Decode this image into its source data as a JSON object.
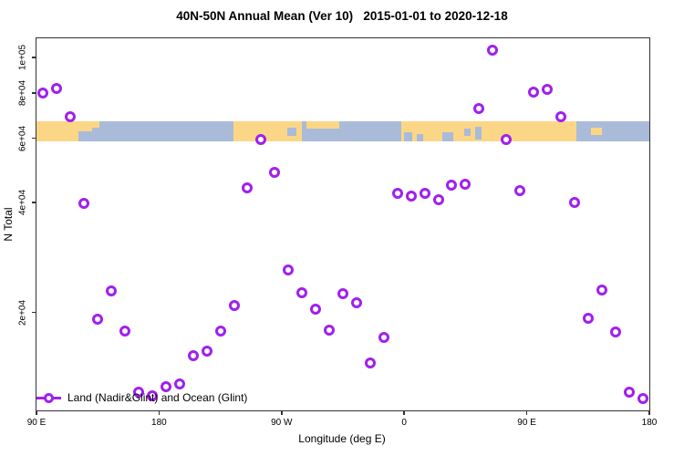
{
  "chart_data": {
    "type": "scatter",
    "title": "40N-50N Annual Mean (Ver 10)   2015-01-01 to 2020-12-18",
    "xlabel": "Longitude (deg E)",
    "ylabel": "N Total",
    "x_axis": {
      "range": [
        90,
        540
      ],
      "ticks": [
        {
          "pos": 90,
          "label": "90 E"
        },
        {
          "pos": 180,
          "label": "180"
        },
        {
          "pos": 270,
          "label": "90 W"
        },
        {
          "pos": 360,
          "label": "0"
        },
        {
          "pos": 450,
          "label": "90 E"
        },
        {
          "pos": 540,
          "label": "180"
        }
      ]
    },
    "y_axis": {
      "scale": "log",
      "ticks": [
        {
          "value": 100000,
          "label": "1e+05"
        },
        {
          "value": 80000,
          "label": "8e+04"
        },
        {
          "value": 60000,
          "label": "6e+04"
        },
        {
          "value": 40000,
          "label": "4e+04"
        },
        {
          "value": 20000,
          "label": "2e+04"
        }
      ]
    },
    "legend": {
      "label": "Land (Nadir&Glint) and Ocean (Glint)",
      "position": "bottom-left"
    },
    "series": [
      {
        "name": "Land (Nadir&Glint) and Ocean (Glint)",
        "marker": "open-circle",
        "color": "#A020F0",
        "points": [
          [
            95,
            79900
          ],
          [
            105,
            82200
          ],
          [
            115,
            68800
          ],
          [
            125,
            39800
          ],
          [
            135,
            19200
          ],
          [
            145,
            22900
          ],
          [
            155,
            17800
          ],
          [
            165,
            12100
          ],
          [
            175,
            11800
          ],
          [
            185,
            12500
          ],
          [
            195,
            12700
          ],
          [
            205,
            15200
          ],
          [
            215,
            15700
          ],
          [
            225,
            17800
          ],
          [
            235,
            20900
          ],
          [
            245,
            43900
          ],
          [
            255,
            59600
          ],
          [
            265,
            48400
          ],
          [
            275,
            26200
          ],
          [
            285,
            22700
          ],
          [
            295,
            20400
          ],
          [
            305,
            17900
          ],
          [
            315,
            22500
          ],
          [
            325,
            21300
          ],
          [
            335,
            14500
          ],
          [
            345,
            17100
          ],
          [
            355,
            42400
          ],
          [
            365,
            41700
          ],
          [
            375,
            42400
          ],
          [
            385,
            40700
          ],
          [
            395,
            44700
          ],
          [
            405,
            44900
          ],
          [
            415,
            72400
          ],
          [
            425,
            104700
          ],
          [
            435,
            59600
          ],
          [
            445,
            43200
          ],
          [
            455,
            80400
          ],
          [
            465,
            81800
          ],
          [
            475,
            68800
          ],
          [
            485,
            40000
          ],
          [
            495,
            19300
          ],
          [
            505,
            23000
          ],
          [
            515,
            17700
          ],
          [
            525,
            12100
          ],
          [
            535,
            11600
          ]
        ]
      }
    ],
    "map_band": {
      "land_color": "#FBD687",
      "ocean_color": "#A9BBD8",
      "top_value": 66800,
      "bottom_value": 58900,
      "land_segments": [
        {
          "from": 90,
          "to": 131
        },
        {
          "from": 234.5,
          "to": 285
        },
        {
          "from": 358,
          "to": 486.5
        }
      ],
      "land_patches": [
        {
          "from": 131,
          "to": 136,
          "y0": 0.0,
          "y1": 0.3
        },
        {
          "from": 288,
          "to": 312,
          "y0": 0.0,
          "y1": 0.38
        },
        {
          "from": 497,
          "to": 505,
          "y0": 0.3,
          "y1": 0.7
        }
      ],
      "ocean_patches": [
        {
          "from": 121,
          "to": 131,
          "y0": 0.5,
          "y1": 1.0
        },
        {
          "from": 274,
          "to": 281,
          "y0": 0.3,
          "y1": 0.75
        },
        {
          "from": 360,
          "to": 366,
          "y0": 0.55,
          "y1": 1.0
        },
        {
          "from": 369,
          "to": 374,
          "y0": 0.65,
          "y1": 1.0
        },
        {
          "from": 388,
          "to": 396,
          "y0": 0.55,
          "y1": 1.0
        },
        {
          "from": 404,
          "to": 409,
          "y0": 0.35,
          "y1": 0.75
        },
        {
          "from": 412,
          "to": 417,
          "y0": 0.25,
          "y1": 0.9
        }
      ]
    }
  }
}
